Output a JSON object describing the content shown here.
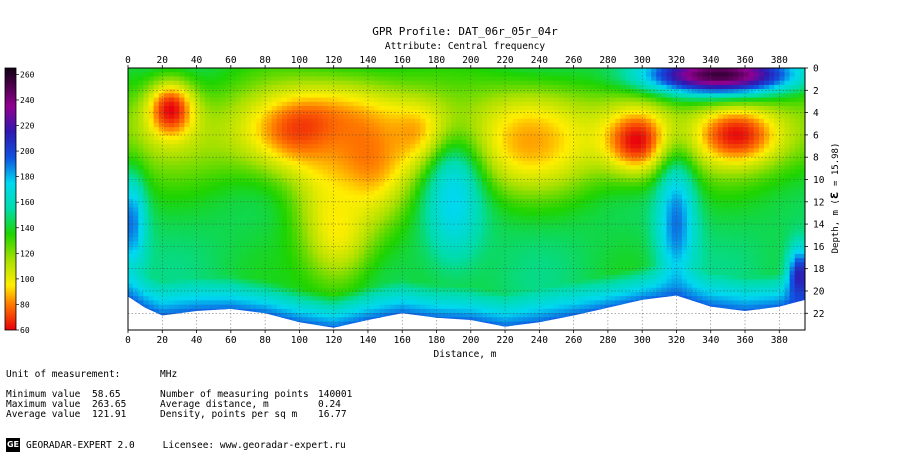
{
  "chart_data": {
    "type": "heatmap",
    "title": "GPR Profile: DAT_06r_05r_04r",
    "subtitle": "Attribute:  Central frequency",
    "xlabel": "Distance, m",
    "ylabel_prefix": "Depth, m (",
    "ylabel_eps": "ε",
    "ylabel_suffix": " = 15.98)",
    "xlim": [
      0,
      395
    ],
    "ylim": [
      0,
      23.5
    ],
    "x_ticks": [
      0,
      20,
      40,
      60,
      80,
      100,
      120,
      140,
      160,
      180,
      200,
      220,
      240,
      260,
      280,
      300,
      320,
      340,
      360,
      380
    ],
    "y_ticks": [
      0,
      2,
      4,
      6,
      8,
      10,
      12,
      14,
      16,
      18,
      20,
      22
    ],
    "colorbar": {
      "ticks": [
        60,
        80,
        100,
        120,
        140,
        160,
        180,
        200,
        220,
        240,
        260
      ],
      "range": [
        60,
        265
      ],
      "stops": [
        {
          "v": 60,
          "color": "#e8000c"
        },
        {
          "v": 80,
          "color": "#ff7a00"
        },
        {
          "v": 95,
          "color": "#ffee00"
        },
        {
          "v": 115,
          "color": "#a8e000"
        },
        {
          "v": 135,
          "color": "#1ed400"
        },
        {
          "v": 155,
          "color": "#00dcaa"
        },
        {
          "v": 175,
          "color": "#00d8f0"
        },
        {
          "v": 195,
          "color": "#1050e0"
        },
        {
          "v": 215,
          "color": "#3018b0"
        },
        {
          "v": 235,
          "color": "#900090"
        },
        {
          "v": 265,
          "color": "#100010"
        }
      ]
    },
    "bottom_boundary": [
      [
        0,
        20.5
      ],
      [
        10,
        21.5
      ],
      [
        20,
        22.2
      ],
      [
        40,
        21.8
      ],
      [
        60,
        21.6
      ],
      [
        80,
        22.0
      ],
      [
        100,
        22.8
      ],
      [
        120,
        23.3
      ],
      [
        140,
        22.6
      ],
      [
        160,
        22.0
      ],
      [
        180,
        22.4
      ],
      [
        200,
        22.6
      ],
      [
        220,
        23.2
      ],
      [
        240,
        22.8
      ],
      [
        260,
        22.2
      ],
      [
        280,
        21.5
      ],
      [
        300,
        20.8
      ],
      [
        320,
        20.4
      ],
      [
        340,
        21.4
      ],
      [
        360,
        21.8
      ],
      [
        380,
        21.4
      ],
      [
        395,
        20.8
      ]
    ],
    "anomalies": [
      {
        "x": 25,
        "y": 3.8,
        "sx": 10,
        "sy": 1.8,
        "v": 60
      },
      {
        "x": 105,
        "y": 5.5,
        "sx": 25,
        "sy": 2.5,
        "v": 65
      },
      {
        "x": 135,
        "y": 8.0,
        "sx": 22,
        "sy": 4,
        "v": 75
      },
      {
        "x": 122,
        "y": 14.0,
        "sx": 15,
        "sy": 4,
        "v": 95
      },
      {
        "x": 170,
        "y": 6.0,
        "sx": 15,
        "sy": 2,
        "v": 80
      },
      {
        "x": 235,
        "y": 6.5,
        "sx": 25,
        "sy": 3,
        "v": 85
      },
      {
        "x": 297,
        "y": 6.5,
        "sx": 14,
        "sy": 2,
        "v": 60
      },
      {
        "x": 355,
        "y": 6.0,
        "sx": 17,
        "sy": 1.8,
        "v": 62
      },
      {
        "x": 190,
        "y": 12.0,
        "sx": 12,
        "sy": 4,
        "v": 175
      },
      {
        "x": 320,
        "y": 14.0,
        "sx": 8,
        "sy": 4,
        "v": 190
      },
      {
        "x": 2,
        "y": 14.0,
        "sx": 6,
        "sy": 3,
        "v": 190
      },
      {
        "x": 345,
        "y": 0.6,
        "sx": 30,
        "sy": 1.2,
        "v": 255
      },
      {
        "x": 392,
        "y": 19.0,
        "sx": 5,
        "sy": 2,
        "v": 220
      }
    ]
  },
  "stats": {
    "unit_label": "Unit of measurement:",
    "unit_value": "MHz",
    "min_label": "Minimum value",
    "min_value": "58.65",
    "max_label": "Maximum value",
    "max_value": "263.65",
    "avg_label": "Average value",
    "avg_value": "121.91",
    "points_label": "Number of measuring points",
    "points_value": "140001",
    "avgdist_label": "Average distance, m",
    "avgdist_value": "0.24",
    "density_label": "Density, points per sq m",
    "density_value": "16.77"
  },
  "footer": {
    "logo_text": "GE",
    "app_name": "GEORADAR-EXPERT 2.0",
    "licensee": "Licensee: www.georadar-expert.ru"
  }
}
